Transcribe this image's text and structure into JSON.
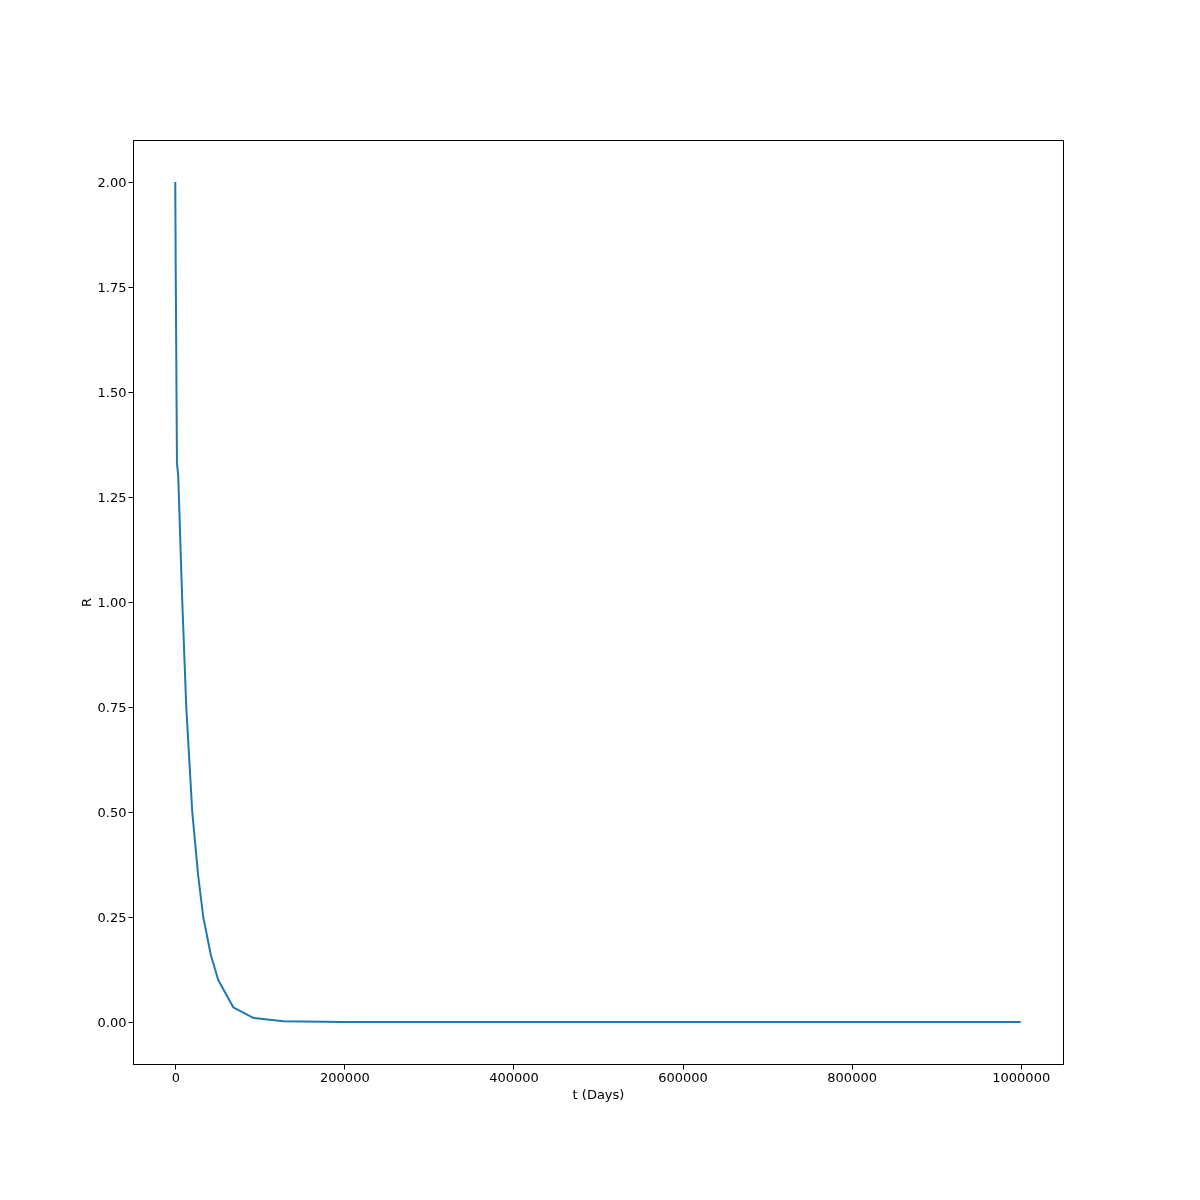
{
  "chart_data": {
    "type": "line",
    "xlabel": "t (Days)",
    "ylabel": "R",
    "x": [
      0,
      500,
      2000,
      3500,
      8300,
      13000,
      20100,
      27000,
      33100,
      42000,
      50800,
      68600,
      92200,
      127700,
      198600,
      1000000
    ],
    "series": [
      {
        "color": "#1f77b4",
        "values": [
          2.0,
          1.8,
          1.33,
          1.3,
          1.0,
          0.75,
          0.5,
          0.35,
          0.25,
          0.16,
          0.1,
          0.035,
          0.01,
          0.002,
          0.0,
          0.0
        ]
      }
    ],
    "xlim": [
      -50000,
      1050000
    ],
    "ylim": [
      -0.1,
      2.1
    ],
    "xticks": [
      0,
      200000,
      400000,
      600000,
      800000,
      1000000
    ],
    "yticks": [
      {
        "value": 0,
        "label": "0.00"
      },
      {
        "value": 0.25,
        "label": "0.25"
      },
      {
        "value": 0.5,
        "label": "0.50"
      },
      {
        "value": 0.75,
        "label": "0.75"
      },
      {
        "value": 1.0,
        "label": "1.00"
      },
      {
        "value": 1.25,
        "label": "1.25"
      },
      {
        "value": 1.5,
        "label": "1.50"
      },
      {
        "value": 1.75,
        "label": "1.75"
      },
      {
        "value": 2.0,
        "label": "2.00"
      }
    ],
    "grid": false,
    "marker": "none",
    "line_style": "solid"
  }
}
